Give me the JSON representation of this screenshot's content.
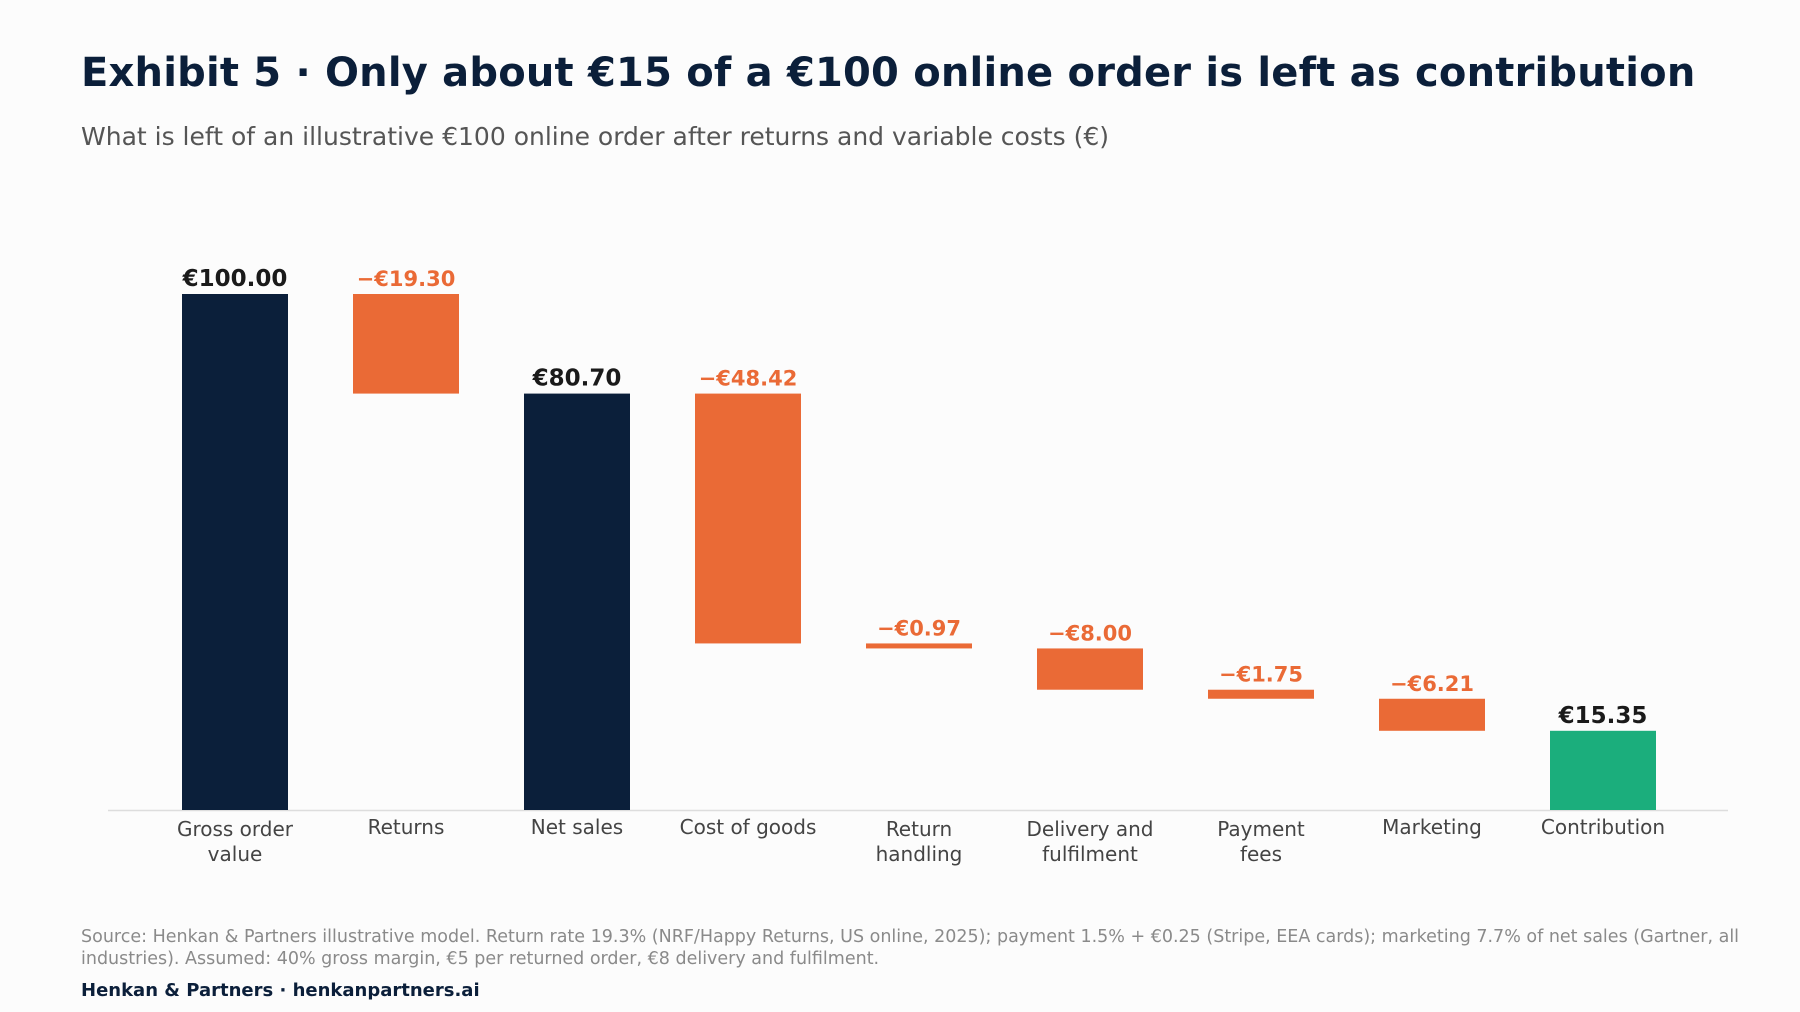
{
  "title": "Exhibit 5 · Only about €15 of a €100 online order is left as contribution",
  "subtitle": "What is left of an illustrative €100 online order after returns and variable costs (€)",
  "source": "Source: Henkan & Partners illustrative model. Return rate 19.3% (NRF/Happy Returns, US online, 2025); payment 1.5% + €0.25 (Stripe, EEA cards); marketing 7.7% of net sales (Gartner, all industries). Assumed: 40% gross margin, €5 per returned order, €8 delivery and fulfilment.",
  "credit": "Henkan & Partners · henkanpartners.ai",
  "colors": {
    "total": "#0b1f3a",
    "decrease": "#ea6a36",
    "result": "#1bae7c",
    "total_label": "#1a1a1a",
    "decrease_label": "#ea6a36",
    "axis": "#dddddd",
    "tick": "#444444"
  },
  "chart_data": {
    "type": "bar",
    "subtype": "waterfall",
    "categories": [
      [
        "Gross order",
        "value"
      ],
      [
        "Returns"
      ],
      [
        "Net sales"
      ],
      [
        "Cost of goods"
      ],
      [
        "Return",
        "handling"
      ],
      [
        "Delivery and",
        "fulfilment"
      ],
      [
        "Payment",
        "fees"
      ],
      [
        "Marketing"
      ],
      [
        "Contribution"
      ]
    ],
    "values": [
      100.0,
      -19.3,
      80.7,
      -48.42,
      -0.97,
      -8.0,
      -1.75,
      -6.21,
      15.35
    ],
    "kinds": [
      "total",
      "decrease",
      "total",
      "decrease",
      "decrease",
      "decrease",
      "decrease",
      "decrease",
      "result"
    ],
    "data_labels": [
      "€100.00",
      "−€19.30",
      "€80.70",
      "−€48.42",
      "−€0.97",
      "−€8.00",
      "−€1.75",
      "−€6.21",
      "€15.35"
    ],
    "ylim": [
      0,
      100
    ],
    "xlabel": "",
    "ylabel": "",
    "grid": false,
    "legend": false
  }
}
